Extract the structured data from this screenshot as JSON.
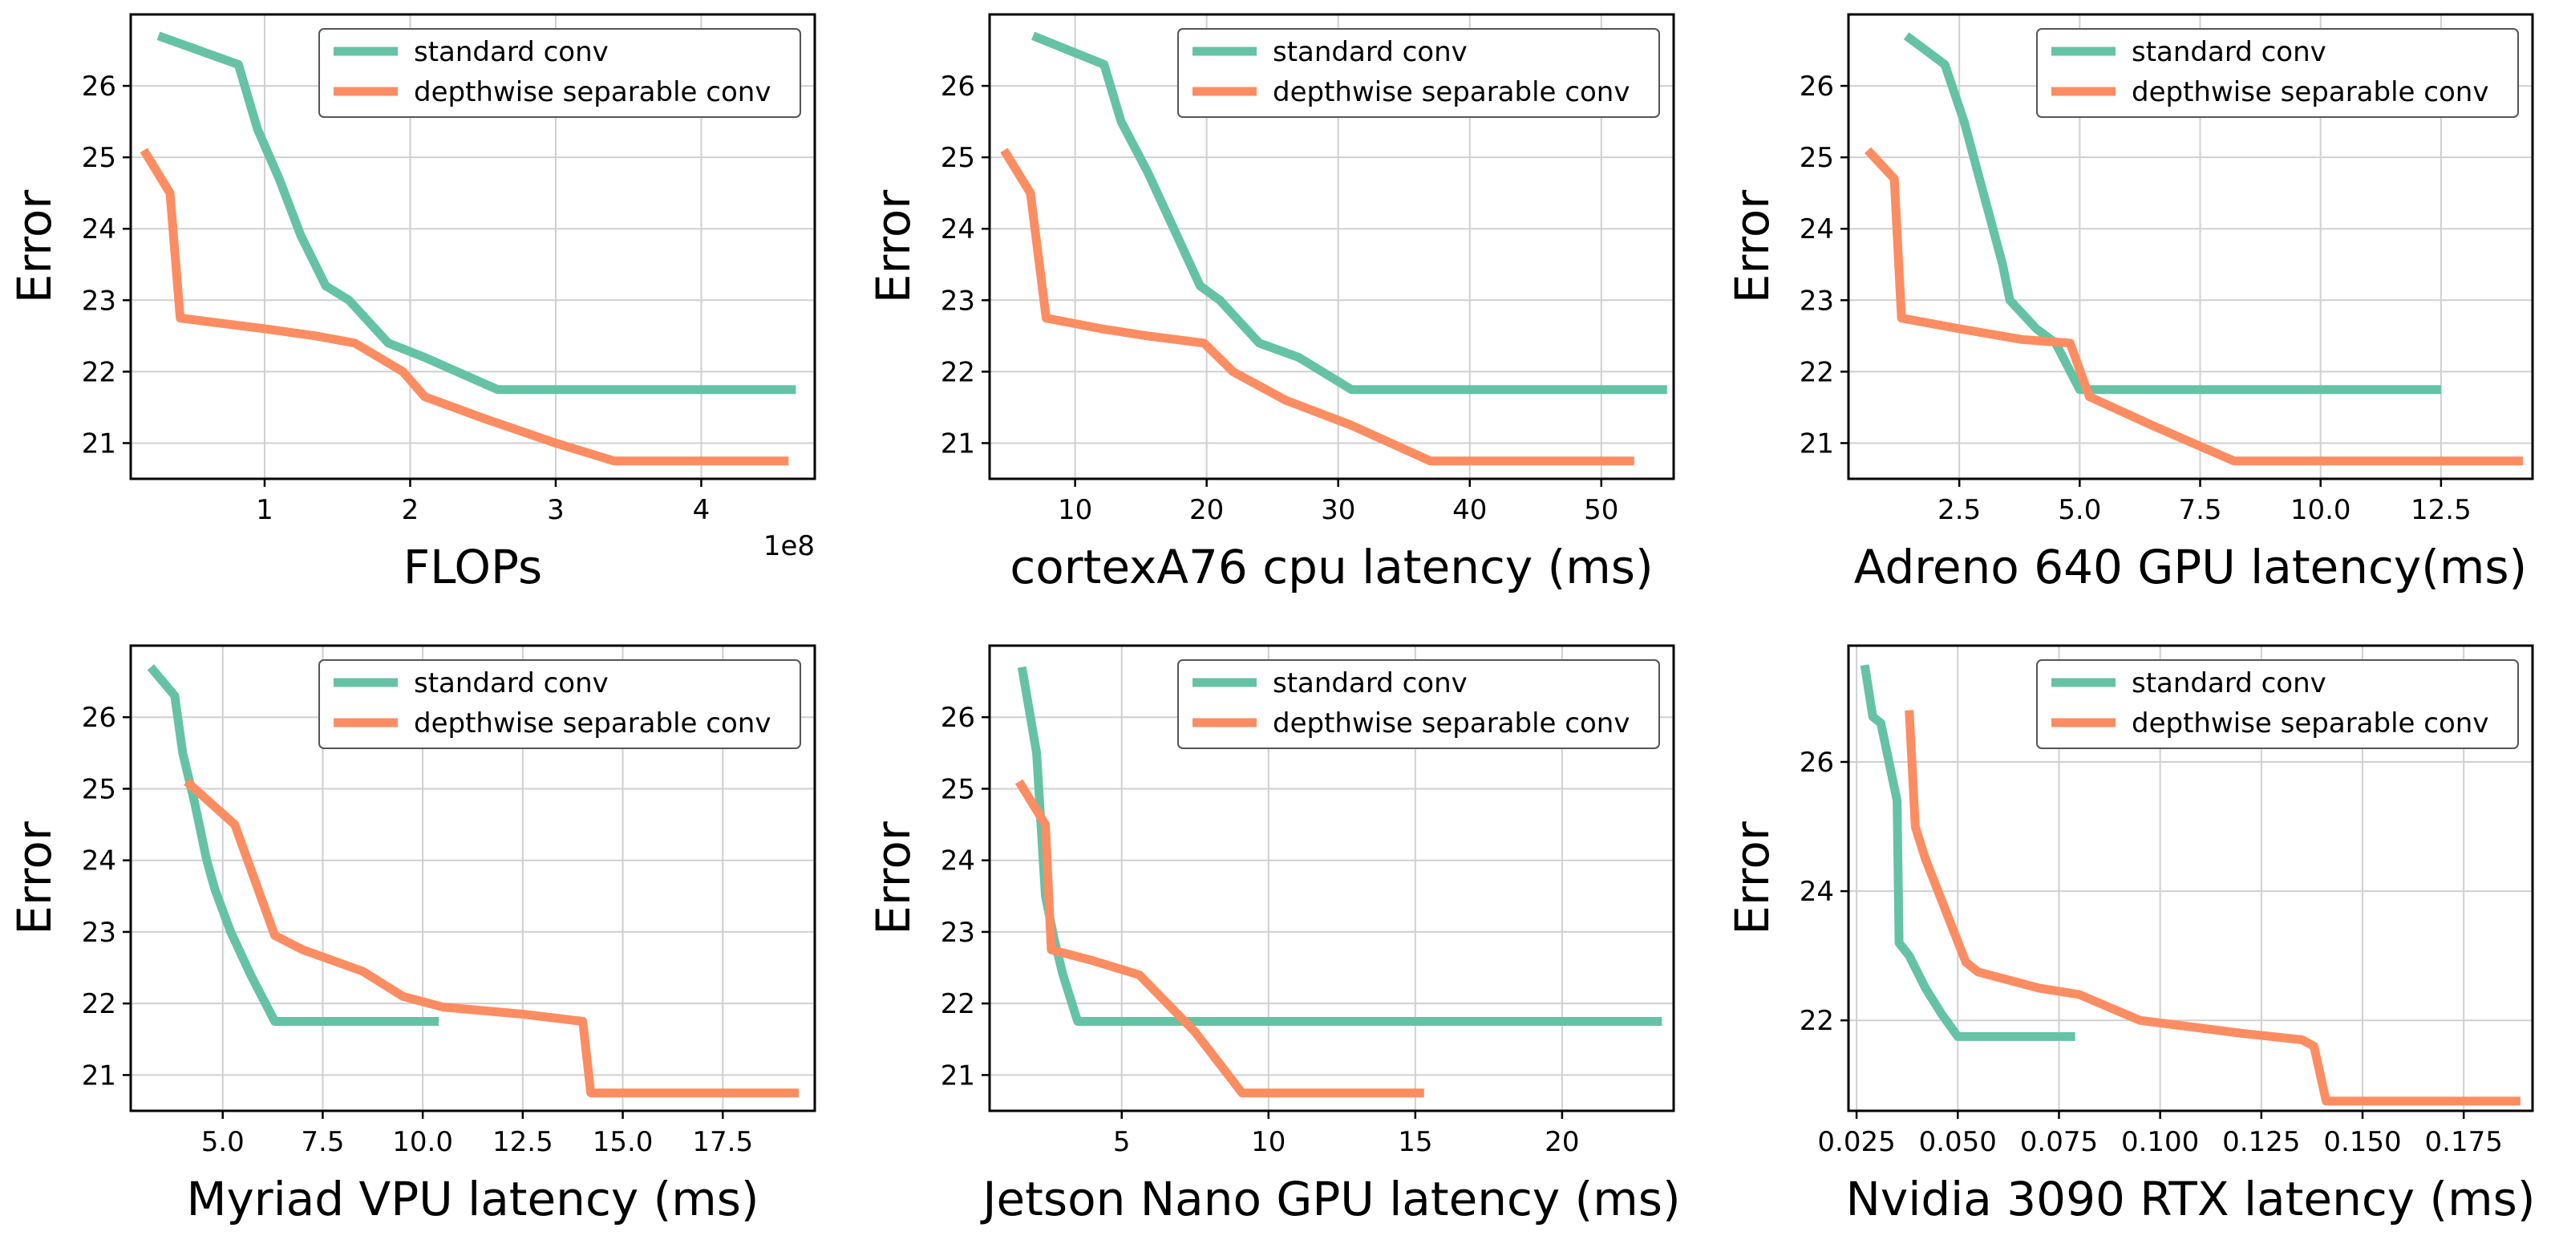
{
  "colors": {
    "standard": "#66c2a5",
    "depthwise": "#fc8d62",
    "grid": "#d0d0d0",
    "frame": "#000000"
  },
  "chart_data": [
    {
      "type": "line",
      "xlabel": "FLOPs",
      "ylabel": "Error",
      "x_offset_label": "1e8",
      "xlim": [
        0.08,
        4.78
      ],
      "ylim": [
        20.5,
        27.0
      ],
      "xticks": [
        1,
        2,
        3,
        4
      ],
      "xtick_labels": [
        "1",
        "2",
        "3",
        "4"
      ],
      "yticks": [
        21,
        22,
        23,
        24,
        25,
        26
      ],
      "ytick_labels": [
        "21",
        "22",
        "23",
        "24",
        "25",
        "26"
      ],
      "legend": [
        "standard conv",
        "depthwise separable conv"
      ],
      "legend_position": "top-right",
      "grid": true,
      "series": [
        {
          "name": "standard conv",
          "x": [
            0.27,
            0.82,
            0.95,
            1.1,
            1.25,
            1.42,
            1.58,
            1.85,
            2.1,
            2.6,
            3.2,
            4.65
          ],
          "y": [
            26.7,
            26.3,
            25.4,
            24.7,
            23.9,
            23.2,
            23.0,
            22.4,
            22.2,
            21.75,
            21.75,
            21.75
          ]
        },
        {
          "name": "depthwise separable conv",
          "x": [
            0.17,
            0.35,
            0.42,
            1.0,
            1.35,
            1.62,
            1.95,
            2.1,
            2.5,
            3.0,
            3.4,
            4.6
          ],
          "y": [
            25.1,
            24.5,
            22.75,
            22.6,
            22.5,
            22.4,
            22.0,
            21.65,
            21.35,
            21.0,
            20.75,
            20.75
          ]
        }
      ]
    },
    {
      "type": "line",
      "xlabel": "cortexA76 cpu latency (ms)",
      "ylabel": "Error",
      "x_offset_label": "",
      "xlim": [
        3.5,
        55.5
      ],
      "ylim": [
        20.5,
        27.0
      ],
      "xticks": [
        10,
        20,
        30,
        40,
        50
      ],
      "xtick_labels": [
        "10",
        "20",
        "30",
        "40",
        "50"
      ],
      "yticks": [
        21,
        22,
        23,
        24,
        25,
        26
      ],
      "ytick_labels": [
        "21",
        "22",
        "23",
        "24",
        "25",
        "26"
      ],
      "legend": [
        "standard conv",
        "depthwise separable conv"
      ],
      "legend_position": "top-right",
      "grid": true,
      "series": [
        {
          "name": "standard conv",
          "x": [
            6.8,
            12.2,
            13.5,
            15.5,
            17.5,
            19.5,
            21.0,
            24.0,
            27.0,
            31.0,
            40.0,
            55.0
          ],
          "y": [
            26.7,
            26.3,
            25.5,
            24.8,
            24.0,
            23.2,
            23.0,
            22.4,
            22.2,
            21.75,
            21.75,
            21.75
          ]
        },
        {
          "name": "depthwise separable conv",
          "x": [
            4.6,
            6.6,
            7.8,
            12.0,
            15.5,
            19.8,
            22.0,
            26.0,
            31.0,
            37.0,
            45.0,
            52.5
          ],
          "y": [
            25.1,
            24.5,
            22.75,
            22.6,
            22.5,
            22.4,
            22.0,
            21.6,
            21.25,
            20.75,
            20.75,
            20.75
          ]
        }
      ]
    },
    {
      "type": "line",
      "xlabel": "Adreno 640 GPU latency(ms)",
      "ylabel": "Error",
      "x_offset_label": "",
      "xlim": [
        0.2,
        14.4
      ],
      "ylim": [
        20.5,
        27.0
      ],
      "xticks": [
        2.5,
        5.0,
        7.5,
        10.0,
        12.5
      ],
      "xtick_labels": [
        "2.5",
        "5.0",
        "7.5",
        "10.0",
        "12.5"
      ],
      "yticks": [
        21,
        22,
        23,
        24,
        25,
        26
      ],
      "ytick_labels": [
        "21",
        "22",
        "23",
        "24",
        "25",
        "26"
      ],
      "legend": [
        "standard conv",
        "depthwise separable conv"
      ],
      "legend_position": "top-right",
      "grid": true,
      "series": [
        {
          "name": "standard conv",
          "x": [
            1.4,
            2.2,
            2.6,
            3.0,
            3.4,
            3.55,
            4.1,
            4.5,
            5.0,
            8.0,
            12.5
          ],
          "y": [
            26.7,
            26.3,
            25.5,
            24.5,
            23.5,
            23.0,
            22.6,
            22.4,
            21.75,
            21.75,
            21.75
          ]
        },
        {
          "name": "depthwise separable conv",
          "x": [
            0.6,
            1.15,
            1.3,
            2.5,
            3.8,
            4.8,
            5.2,
            6.5,
            8.2,
            10.0,
            14.2
          ],
          "y": [
            25.1,
            24.7,
            22.75,
            22.6,
            22.45,
            22.4,
            21.65,
            21.25,
            20.75,
            20.75,
            20.75
          ]
        }
      ]
    },
    {
      "type": "line",
      "xlabel": "Myriad VPU latency (ms)",
      "ylabel": "Error",
      "x_offset_label": "",
      "xlim": [
        2.7,
        19.8
      ],
      "ylim": [
        20.5,
        27.0
      ],
      "xticks": [
        5.0,
        7.5,
        10.0,
        12.5,
        15.0,
        17.5
      ],
      "xtick_labels": [
        "5.0",
        "7.5",
        "10.0",
        "12.5",
        "15.0",
        "17.5"
      ],
      "yticks": [
        21,
        22,
        23,
        24,
        25,
        26
      ],
      "ytick_labels": [
        "21",
        "22",
        "23",
        "24",
        "25",
        "26"
      ],
      "legend": [
        "standard conv",
        "depthwise separable conv"
      ],
      "legend_position": "top-right",
      "grid": true,
      "series": [
        {
          "name": "standard conv",
          "x": [
            3.2,
            3.8,
            4.0,
            4.3,
            4.6,
            4.8,
            5.2,
            5.7,
            6.3,
            8.0,
            10.4
          ],
          "y": [
            26.7,
            26.3,
            25.5,
            24.8,
            24.0,
            23.6,
            23.0,
            22.4,
            21.75,
            21.75,
            21.75
          ]
        },
        {
          "name": "depthwise separable conv",
          "x": [
            4.1,
            5.3,
            6.3,
            7.0,
            8.5,
            9.5,
            10.5,
            12.5,
            14.0,
            14.2,
            16.5,
            19.4
          ],
          "y": [
            25.1,
            24.5,
            22.95,
            22.75,
            22.45,
            22.1,
            21.95,
            21.85,
            21.75,
            20.75,
            20.75,
            20.75
          ]
        }
      ]
    },
    {
      "type": "line",
      "xlabel": "Jetson Nano GPU latency (ms)",
      "ylabel": "Error",
      "x_offset_label": "",
      "xlim": [
        0.5,
        23.8
      ],
      "ylim": [
        20.5,
        27.0
      ],
      "xticks": [
        5,
        10,
        15,
        20
      ],
      "xtick_labels": [
        "5",
        "10",
        "15",
        "20"
      ],
      "yticks": [
        21,
        22,
        23,
        24,
        25,
        26
      ],
      "ytick_labels": [
        "21",
        "22",
        "23",
        "24",
        "25",
        "26"
      ],
      "legend": [
        "standard conv",
        "depthwise separable conv"
      ],
      "legend_position": "top-right",
      "grid": true,
      "series": [
        {
          "name": "standard conv",
          "x": [
            1.6,
            2.1,
            2.4,
            2.7,
            3.0,
            3.5,
            10.0,
            23.4
          ],
          "y": [
            26.7,
            25.5,
            23.5,
            22.9,
            22.4,
            21.75,
            21.75,
            21.75
          ]
        },
        {
          "name": "depthwise separable conv",
          "x": [
            1.5,
            2.4,
            2.6,
            4.0,
            5.6,
            7.5,
            9.1,
            12.0,
            15.3
          ],
          "y": [
            25.1,
            24.5,
            22.75,
            22.6,
            22.4,
            21.6,
            20.75,
            20.75,
            20.75
          ]
        }
      ]
    },
    {
      "type": "line",
      "xlabel": "Nvidia 3090 RTX latency (ms)",
      "ylabel": "Error",
      "x_offset_label": "",
      "xlim": [
        0.023,
        0.192
      ],
      "ylim": [
        20.6,
        27.8
      ],
      "xticks": [
        0.025,
        0.05,
        0.075,
        0.1,
        0.125,
        0.15,
        0.175
      ],
      "xtick_labels": [
        "0.025",
        "0.050",
        "0.075",
        "0.100",
        "0.125",
        "0.150",
        "0.175"
      ],
      "yticks": [
        22,
        24,
        26
      ],
      "ytick_labels": [
        "22",
        "24",
        "26"
      ],
      "legend": [
        "standard conv",
        "depthwise separable conv"
      ],
      "legend_position": "top-right",
      "grid": true,
      "series": [
        {
          "name": "standard conv",
          "x": [
            0.027,
            0.029,
            0.031,
            0.035,
            0.0355,
            0.038,
            0.042,
            0.046,
            0.05,
            0.06,
            0.079
          ],
          "y": [
            27.5,
            26.7,
            26.6,
            25.4,
            23.2,
            23.0,
            22.5,
            22.1,
            21.75,
            21.75,
            21.75
          ]
        },
        {
          "name": "depthwise separable conv",
          "x": [
            0.038,
            0.0395,
            0.042,
            0.047,
            0.052,
            0.055,
            0.07,
            0.08,
            0.095,
            0.12,
            0.135,
            0.138,
            0.141,
            0.16,
            0.189
          ],
          "y": [
            26.8,
            25.0,
            24.5,
            23.7,
            22.9,
            22.75,
            22.5,
            22.4,
            22.0,
            21.8,
            21.7,
            21.6,
            20.75,
            20.75,
            20.75
          ]
        }
      ]
    }
  ]
}
